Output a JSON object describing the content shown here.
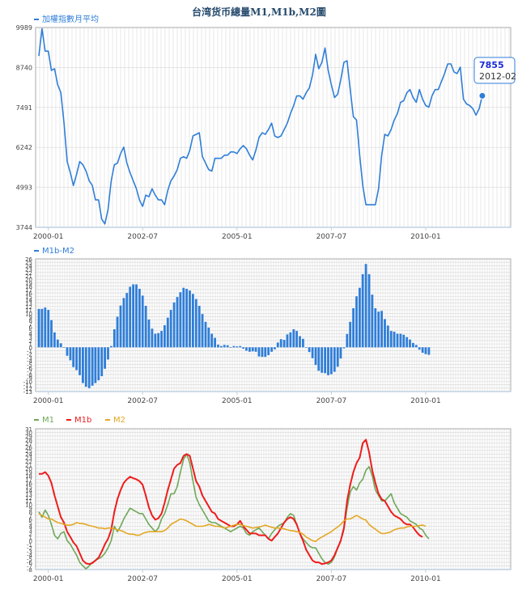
{
  "title": "台湾货币總量M1,M1b,M2圖",
  "tooltip": {
    "value": "7855",
    "date": "2012-02"
  },
  "colors": {
    "index": "#2f7ed8",
    "m1": "#6fa85a",
    "m1b": "#ee1c1c",
    "m2": "#e3a724",
    "grid": "#d8d8d8",
    "axis": "#c0d0e0",
    "title": "#274b6d"
  },
  "chart_data": [
    {
      "type": "line",
      "legend": [
        "加權指數月平均"
      ],
      "x_tick_labels": [
        "2000-01",
        "2002-07",
        "2005-01",
        "2007-07",
        "2010-01"
      ],
      "x_range": [
        "1999-10",
        "2012-02"
      ],
      "y_tick_labels": [
        "9989",
        "8740",
        "7491",
        "6242",
        "4993",
        "3744"
      ],
      "ylim": [
        3744,
        9989
      ],
      "series": [
        {
          "name": "加權指數月平均",
          "values": [
            9100,
            9950,
            9250,
            9250,
            8650,
            8700,
            8200,
            7950,
            7000,
            5800,
            5450,
            5050,
            5400,
            5800,
            5700,
            5500,
            5200,
            5050,
            4600,
            4600,
            4000,
            3850,
            4300,
            5200,
            5700,
            5750,
            6050,
            6250,
            5750,
            5450,
            5200,
            4950,
            4600,
            4400,
            4750,
            4700,
            4950,
            4750,
            4600,
            4600,
            4450,
            4900,
            5200,
            5350,
            5550,
            5900,
            5950,
            5900,
            6150,
            6600,
            6650,
            6700,
            5950,
            5750,
            5550,
            5500,
            5900,
            5900,
            5900,
            6000,
            6000,
            6100,
            6100,
            6050,
            6200,
            6300,
            6200,
            6000,
            5850,
            6150,
            6550,
            6700,
            6650,
            6800,
            7000,
            6600,
            6550,
            6600,
            6800,
            7000,
            7300,
            7550,
            7850,
            7850,
            7750,
            7950,
            8100,
            8500,
            9150,
            8700,
            8900,
            9350,
            8650,
            8200,
            7800,
            7900,
            8350,
            8900,
            8950,
            8050,
            7200,
            7100,
            6000,
            5050,
            4450,
            4450,
            4450,
            4450,
            4950,
            6000,
            6650,
            6600,
            6800,
            7100,
            7300,
            7650,
            7700,
            7950,
            8050,
            7800,
            7650,
            8050,
            7750,
            7550,
            7500,
            7850,
            8050,
            8050,
            8300,
            8550,
            8850,
            8850,
            8600,
            8550,
            8750,
            7750,
            7600,
            7550,
            7450,
            7250,
            7450,
            7855
          ]
        }
      ]
    },
    {
      "type": "bar",
      "legend": [
        "M1b-M2"
      ],
      "x_tick_labels": [
        "2000-01",
        "2002-07",
        "2005-01",
        "2007-07",
        "2010-01"
      ],
      "y_tick_labels": [
        "26",
        "25",
        "24",
        "23",
        "22",
        "21",
        "20",
        "19",
        "18",
        "17",
        "16",
        "15",
        "14",
        "13",
        "12",
        "11",
        "10",
        "9",
        "8",
        "7",
        "6",
        "5",
        "4",
        "3",
        "2",
        "1",
        "0",
        "-1",
        "-2",
        "-3",
        "-4",
        "-5",
        "-6",
        "-7",
        "-8",
        "-9",
        "-10",
        "-11",
        "-12",
        "-13"
      ],
      "ylim": [
        -13,
        26
      ],
      "series": [
        {
          "name": "M1b-M2",
          "values": [
            11.3,
            11.3,
            11.7,
            11,
            8,
            4.4,
            2.3,
            1.2,
            0,
            -2.5,
            -3.8,
            -5.8,
            -6.7,
            -8.2,
            -10.5,
            -11.6,
            -12,
            -11.3,
            -10.5,
            -9.7,
            -8.5,
            -6.3,
            -3.6,
            0.4,
            5.3,
            9,
            12.3,
            14.5,
            16,
            17.8,
            18.5,
            18.5,
            17.2,
            15.2,
            12.2,
            8.2,
            5.5,
            4,
            4.2,
            4.8,
            6.5,
            8.7,
            11,
            13.2,
            14.8,
            16.2,
            17.5,
            17.2,
            16.7,
            15.7,
            14.2,
            12.2,
            9.8,
            7.5,
            5.8,
            4,
            2.8,
            0.8,
            0.4,
            0.7,
            0.6,
            0,
            0.4,
            0.3,
            0.4,
            -0.4,
            -1,
            -1.3,
            -1.2,
            -1.3,
            -2.7,
            -2.8,
            -2.8,
            -2.3,
            -1.3,
            -0.6,
            1.4,
            2.4,
            2.2,
            3.8,
            4.4,
            5.3,
            4.8,
            3.3,
            2.5,
            0,
            -1.4,
            -3.2,
            -5.2,
            -6.9,
            -7.5,
            -7.6,
            -8.2,
            -7.9,
            -7.2,
            -5.7,
            -3.3,
            -0.3,
            3.9,
            7.5,
            11.5,
            15,
            17.5,
            21.5,
            24.5,
            21.5,
            15.5,
            11.5,
            10.5,
            10.7,
            8.3,
            6.4,
            4.8,
            4.6,
            4,
            4,
            3.7,
            3,
            2.3,
            1.3,
            0.7,
            -0.7,
            -1.6,
            -2,
            -2.2
          ]
        }
      ]
    },
    {
      "type": "line",
      "legend": [
        "M1",
        "M1b",
        "M2"
      ],
      "x_tick_labels": [
        "2000-01",
        "2002-07",
        "2005-01",
        "2007-07",
        "2010-01"
      ],
      "y_tick_labels": [
        "31",
        "30",
        "29",
        "28",
        "27",
        "26",
        "25",
        "24",
        "23",
        "22",
        "21",
        "20",
        "19",
        "18",
        "17",
        "16",
        "15",
        "14",
        "13",
        "12",
        "11",
        "10",
        "9",
        "8",
        "7",
        "6",
        "5",
        "4",
        "3",
        "2",
        "1",
        "0",
        "-1",
        "-2",
        "-3",
        "-4",
        "-5",
        "-6",
        "-7",
        "-8"
      ],
      "ylim": [
        -8,
        31
      ],
      "series": [
        {
          "name": "M1",
          "values": [
            8,
            6.5,
            8.5,
            7,
            4.5,
            1.5,
            0.5,
            2,
            2.5,
            0,
            -1,
            -2.5,
            -4,
            -6,
            -7,
            -7.8,
            -7,
            -6,
            -5.5,
            -5,
            -4.5,
            -3.5,
            -2,
            0,
            4,
            2.5,
            4,
            6,
            7.5,
            9,
            8.5,
            8,
            7.5,
            7.5,
            6,
            4.5,
            3.5,
            2.5,
            3.5,
            6,
            7.5,
            10,
            13,
            13,
            15,
            19,
            22.5,
            24,
            21.5,
            16.5,
            12,
            10,
            8.5,
            7,
            5.5,
            5,
            5,
            4.5,
            4,
            3.5,
            3,
            2.5,
            3,
            3.5,
            4,
            3.5,
            2,
            1.5,
            2.5,
            3,
            3.5,
            2.5,
            1.5,
            0.5,
            2,
            3,
            4,
            4.5,
            5,
            6.5,
            7.5,
            7,
            4.5,
            2,
            0.5,
            -0.5,
            -1.5,
            -2,
            -2,
            -3.5,
            -5,
            -6,
            -6.5,
            -6,
            -4.5,
            -2,
            0,
            3,
            9,
            13.5,
            15,
            14,
            16,
            17,
            19.5,
            20.5,
            18,
            14,
            12.5,
            11,
            11,
            12,
            13,
            10.5,
            9,
            7.5,
            7,
            6.5,
            5.5,
            5,
            4.5,
            3.5,
            3,
            1.5,
            0.5
          ]
        },
        {
          "name": "M1b",
          "values": [
            18.5,
            18.5,
            19,
            18,
            16,
            12.5,
            9.5,
            6.5,
            5,
            2.5,
            1,
            -0.5,
            -1.5,
            -3.5,
            -5.5,
            -6.3,
            -6.5,
            -6.2,
            -5.5,
            -4.7,
            -3,
            -1,
            0.5,
            3,
            8,
            11.5,
            14,
            16,
            17,
            17.7,
            17.3,
            17,
            16.5,
            15.5,
            12.5,
            9.2,
            7,
            5.8,
            6.2,
            7.5,
            10.5,
            14,
            17,
            20,
            21,
            21.5,
            23.5,
            24,
            23.5,
            20,
            16.5,
            15,
            12.5,
            11,
            9.5,
            8,
            7.5,
            6,
            5.5,
            5,
            4.5,
            4,
            4,
            4.5,
            5.5,
            4,
            3,
            2,
            2,
            2,
            1.5,
            1.5,
            1.5,
            0.5,
            0,
            1,
            2,
            3.5,
            5,
            6,
            6.5,
            6,
            4.5,
            2,
            0,
            -2.5,
            -4,
            -5.5,
            -6,
            -6,
            -6.5,
            -6.3,
            -6,
            -5.5,
            -4,
            -2,
            0,
            3.5,
            11,
            15.5,
            19,
            21.5,
            23,
            27,
            28,
            24.5,
            19.5,
            16,
            13,
            11.5,
            11,
            9.5,
            8,
            7,
            6.5,
            6,
            5,
            4.5,
            4.5,
            3.7,
            2.5,
            1.5,
            1
          ]
        },
        {
          "name": "M2",
          "values": [
            7.5,
            7,
            6.5,
            6,
            6,
            5.5,
            5,
            4.8,
            4.5,
            4.3,
            4.3,
            4.5,
            5,
            4.8,
            4.7,
            4.5,
            4.2,
            4,
            3.8,
            3.5,
            3.5,
            3.3,
            3.5,
            3.5,
            3.3,
            3,
            2.8,
            2.5,
            2,
            1.8,
            1.8,
            1.5,
            1.5,
            2,
            2.3,
            2.5,
            2.5,
            2.5,
            2.5,
            2.5,
            2.8,
            3.5,
            4.5,
            5,
            5.5,
            6,
            5.8,
            5.5,
            5,
            4.5,
            4,
            4,
            4,
            4.2,
            4.5,
            4.3,
            4,
            4,
            3.8,
            3.5,
            3.7,
            4,
            4.3,
            4.5,
            4.5,
            4.2,
            4,
            3.7,
            3.5,
            3.6,
            3.8,
            4,
            4.3,
            4,
            3.7,
            3.5,
            3.5,
            3.4,
            3.3,
            3,
            2.8,
            2.7,
            2.5,
            2.3,
            1.8,
            1,
            0.5,
            0,
            -0.2,
            0.5,
            1,
            1.5,
            2,
            2.5,
            3.2,
            3.8,
            4.5,
            5.5,
            6,
            6,
            6.5,
            7,
            6.5,
            6,
            5.7,
            4.5,
            3.8,
            3.2,
            2.5,
            2,
            2,
            2.2,
            2.5,
            3,
            3.3,
            3.5,
            3.5,
            3.8,
            4,
            4,
            4,
            4.2,
            4.3,
            4
          ]
        }
      ]
    }
  ]
}
